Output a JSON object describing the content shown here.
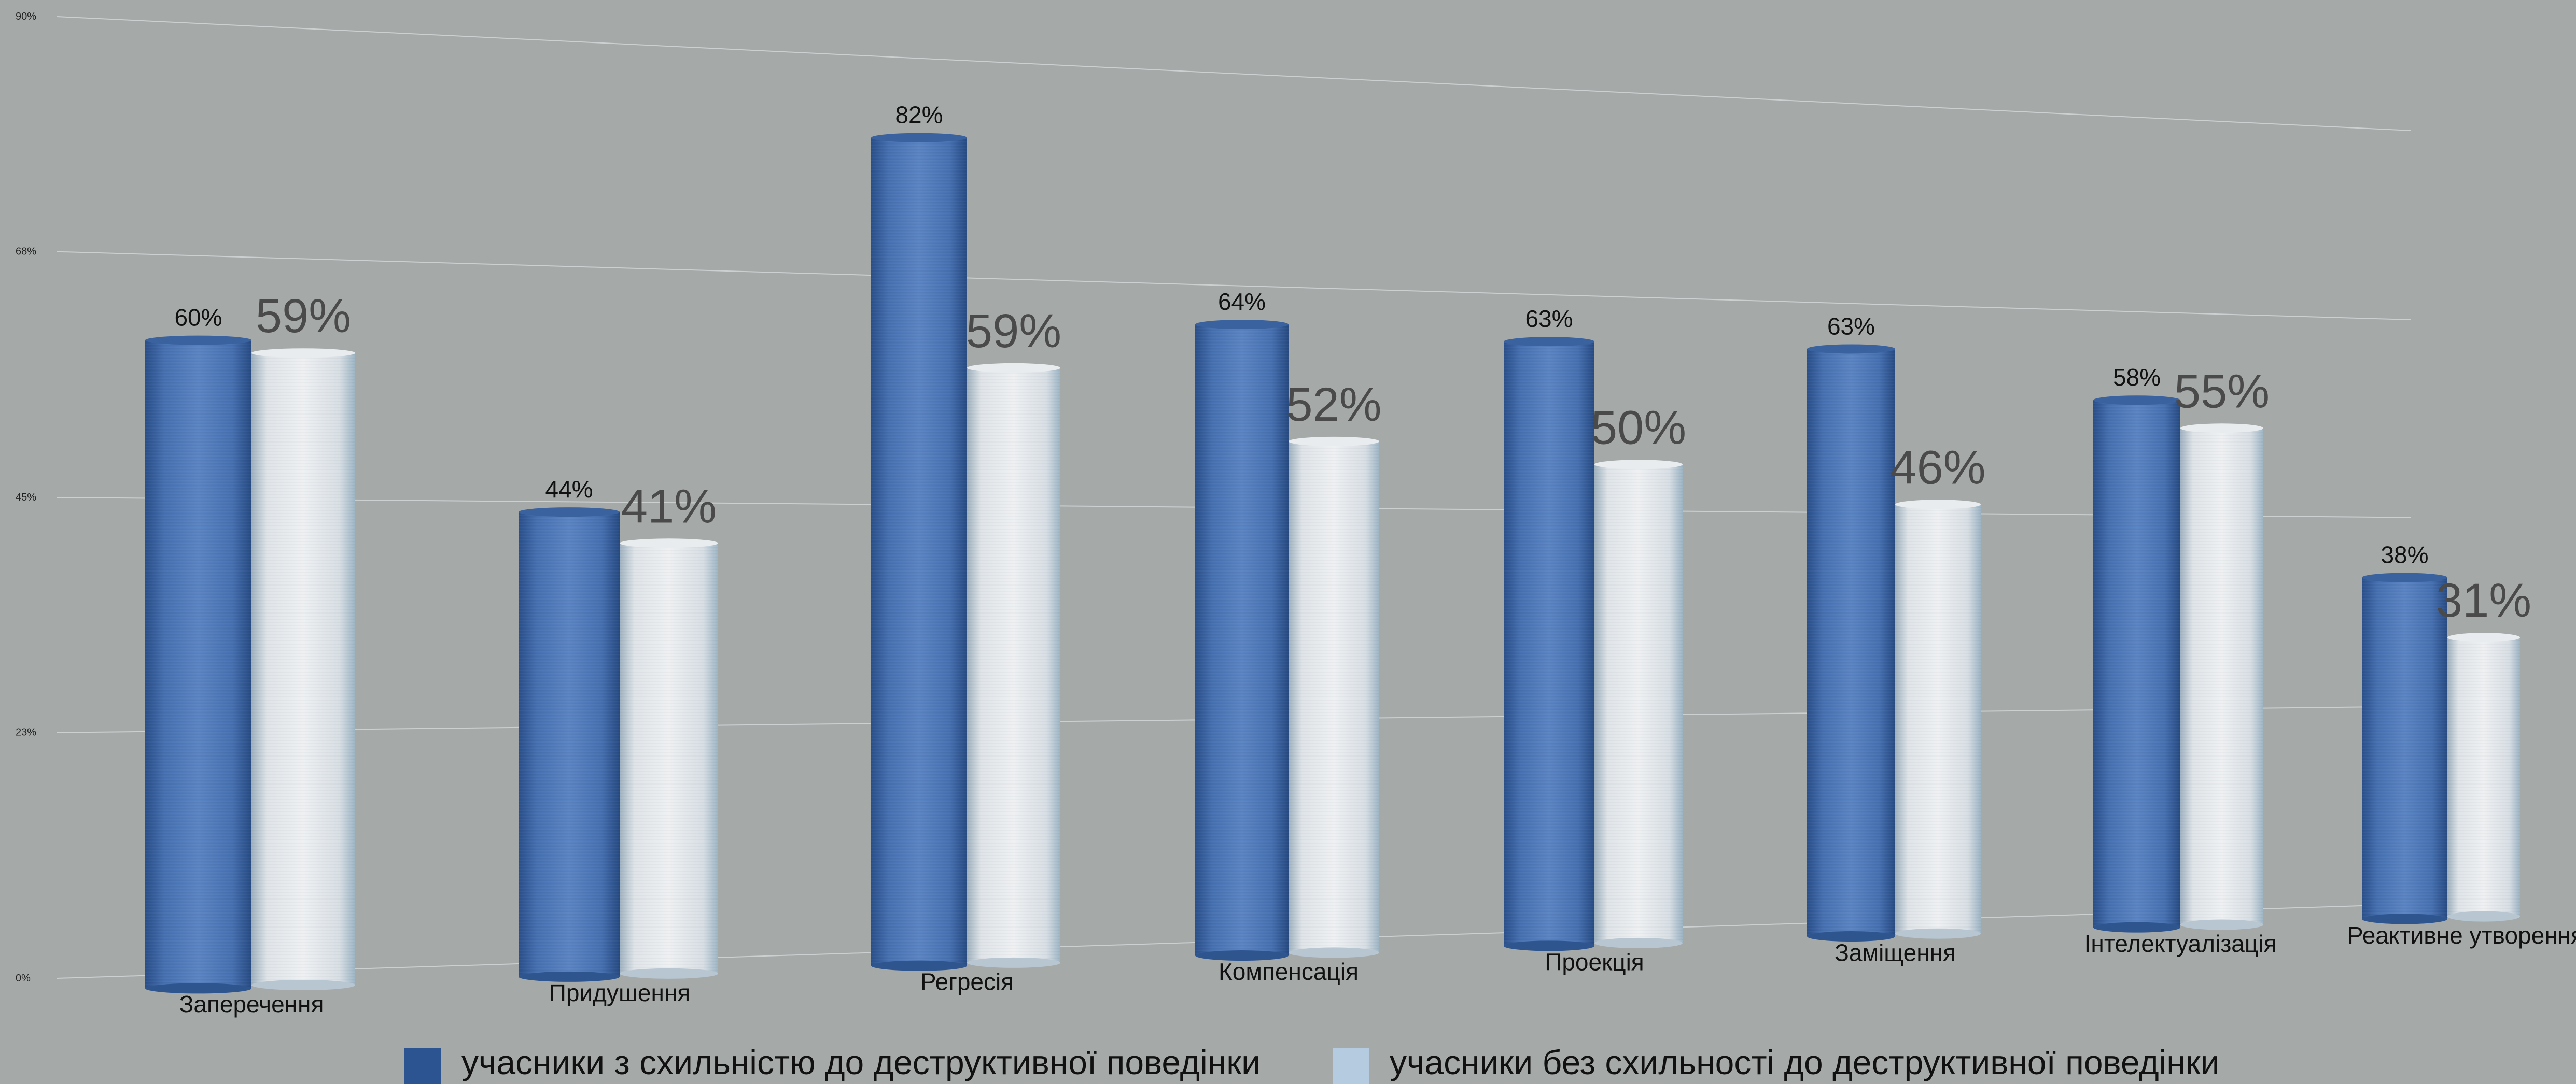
{
  "chart_data": {
    "type": "bar",
    "categories": [
      "Заперечення",
      "Придушення",
      "Регресія",
      "Компенсація",
      "Проекція",
      "Заміщення",
      "Інтелектуалізація",
      "Реактивне утворення"
    ],
    "series": [
      {
        "name": "учасники з схильністю до деструктивної поведінки",
        "values": [
          60,
          44,
          82,
          64,
          63,
          63,
          58,
          38
        ],
        "labels": [
          "60%",
          "44%",
          "82%",
          "64%",
          "63%",
          "63%",
          "58%",
          "38%"
        ],
        "color": "#4a72b0"
      },
      {
        "name": "учасники без схильності до деструктивної поведінки",
        "values": [
          59,
          41,
          59,
          52,
          50,
          46,
          55,
          31
        ],
        "labels": [
          "59%",
          "41%",
          "59%",
          "52%",
          "50%",
          "46%",
          "55%",
          "31%"
        ],
        "color": "#e3e6e8"
      }
    ],
    "y_ticks": [
      "90%",
      "68%",
      "45%",
      "23%",
      "0%"
    ],
    "y_tick_values": [
      90,
      68,
      45,
      23,
      0
    ],
    "ylim": [
      0,
      90
    ],
    "grid": true,
    "legend_position": "bottom",
    "legend_swatch_colors": [
      "#2c5490",
      "#b4cbe0"
    ],
    "title": "",
    "xlabel": "",
    "ylabel": ""
  }
}
